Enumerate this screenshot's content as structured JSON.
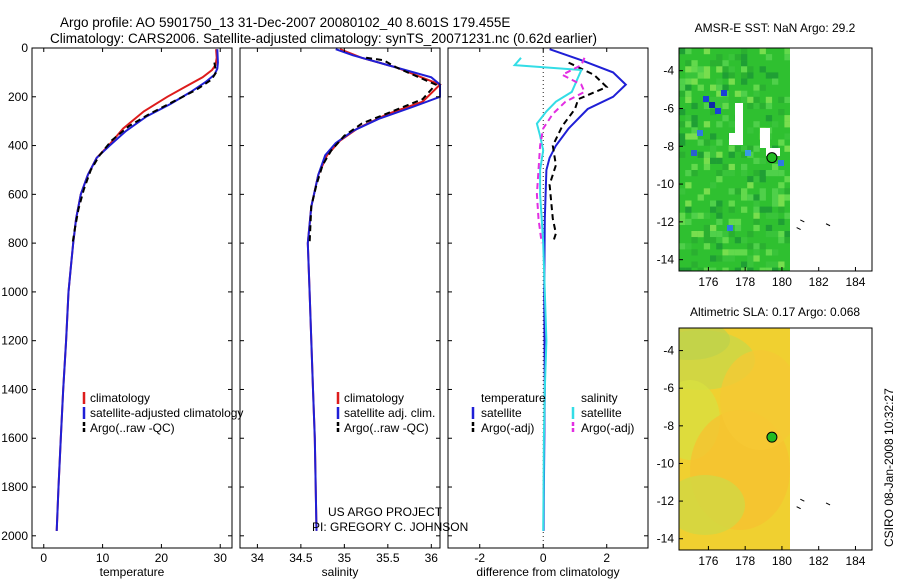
{
  "title_line1": "Argo profile: AO 5901750_13 31-Dec-2007 20080102_40 8.601S 179.455E",
  "title_line2": "Climatology: CARS2006. Satellite-adjusted climatology: synTS_20071231.nc (0.62d earlier)",
  "side_label": "CSIRO 08-Jan-2008 10:32:27",
  "project_text": [
    "US ARGO PROJECT",
    "PI: GREGORY C. JOHNSON"
  ],
  "colors": {
    "red": "#dd1c1c",
    "blue": "#1f1fd6",
    "black": "#000000",
    "cyan": "#33dde6",
    "magenta": "#e22ee2"
  },
  "chart_data": [
    {
      "type": "line",
      "id": "temperature",
      "xlabel": "temperature",
      "ylabel": "",
      "xlim": [
        -2,
        32
      ],
      "ylim": [
        0,
        2050
      ],
      "xticks": [
        0,
        10,
        20,
        30
      ],
      "yticks": [
        0,
        200,
        400,
        600,
        800,
        1000,
        1200,
        1400,
        1600,
        1800,
        2000
      ],
      "legend": [
        "climatology",
        "satellite-adjusted climatology",
        "Argo(..raw -QC)"
      ],
      "series": [
        {
          "name": "climatology",
          "color": "red",
          "dash": "",
          "points": [
            [
              29.3,
              5
            ],
            [
              29.4,
              40
            ],
            [
              29.2,
              70
            ],
            [
              28.6,
              90
            ],
            [
              27,
              120
            ],
            [
              24,
              160
            ],
            [
              21,
              200
            ],
            [
              17,
              260
            ],
            [
              13.5,
              330
            ],
            [
              11,
              400
            ],
            [
              9,
              450
            ],
            [
              7.5,
              520
            ],
            [
              6.3,
              600
            ],
            [
              5.5,
              700
            ],
            [
              5,
              800
            ],
            [
              4.6,
              900
            ],
            [
              4.2,
              1000
            ],
            [
              3.8,
              1200
            ],
            [
              3.3,
              1400
            ],
            [
              2.9,
              1600
            ],
            [
              2.5,
              1800
            ],
            [
              2.2,
              1980
            ]
          ]
        },
        {
          "name": "satellite",
          "color": "blue",
          "dash": "",
          "points": [
            [
              29.5,
              5
            ],
            [
              29.6,
              60
            ],
            [
              29.5,
              85
            ],
            [
              29,
              110
            ],
            [
              27.5,
              140
            ],
            [
              25,
              180
            ],
            [
              21.5,
              230
            ],
            [
              17.5,
              280
            ],
            [
              14,
              340
            ],
            [
              11.2,
              400
            ],
            [
              9,
              450
            ],
            [
              7.5,
              520
            ],
            [
              6.3,
              600
            ],
            [
              5.5,
              700
            ],
            [
              5,
              800
            ],
            [
              4.6,
              900
            ],
            [
              4.2,
              1000
            ],
            [
              3.8,
              1200
            ],
            [
              3.3,
              1400
            ],
            [
              2.9,
              1600
            ],
            [
              2.5,
              1800
            ],
            [
              2.2,
              1980
            ]
          ]
        },
        {
          "name": "argo",
          "color": "black",
          "dash": "6,4",
          "points": [
            [
              29,
              60
            ],
            [
              29.3,
              100
            ],
            [
              28.5,
              130
            ],
            [
              26,
              170
            ],
            [
              22,
              220
            ],
            [
              18,
              270
            ],
            [
              14.5,
              320
            ],
            [
              11.5,
              380
            ],
            [
              9.5,
              440
            ],
            [
              8,
              500
            ],
            [
              6.8,
              580
            ],
            [
              5.9,
              660
            ],
            [
              5.3,
              740
            ],
            [
              4.9,
              800
            ]
          ]
        }
      ]
    },
    {
      "type": "line",
      "id": "salinity",
      "xlabel": "salinity",
      "ylabel": "",
      "xlim": [
        33.8,
        36.1
      ],
      "ylim": [
        0,
        2050
      ],
      "xticks": [
        34,
        34.5,
        35,
        35.5,
        36
      ],
      "legend": [
        "climatology",
        "satellite adj. clim.",
        "Argo(..raw -QC)"
      ],
      "series": [
        {
          "name": "climatology",
          "color": "red",
          "dash": "",
          "points": [
            [
              34.95,
              5
            ],
            [
              35.2,
              40
            ],
            [
              35.6,
              80
            ],
            [
              36.1,
              150
            ],
            [
              35.9,
              220
            ],
            [
              35.5,
              270
            ],
            [
              35.15,
              330
            ],
            [
              34.95,
              380
            ],
            [
              34.8,
              440
            ],
            [
              34.7,
              520
            ],
            [
              34.62,
              650
            ],
            [
              34.58,
              800
            ],
            [
              34.6,
              1000
            ],
            [
              34.62,
              1200
            ],
            [
              34.64,
              1400
            ],
            [
              34.66,
              1600
            ],
            [
              34.67,
              1800
            ],
            [
              34.68,
              1980
            ]
          ]
        },
        {
          "name": "satellite",
          "color": "blue",
          "dash": "",
          "points": [
            [
              34.9,
              5
            ],
            [
              35.1,
              30
            ],
            [
              35.5,
              70
            ],
            [
              36.0,
              120
            ],
            [
              36.1,
              150
            ],
            [
              36.1,
              200
            ],
            [
              35.8,
              240
            ],
            [
              35.4,
              290
            ],
            [
              35.1,
              340
            ],
            [
              34.9,
              390
            ],
            [
              34.78,
              440
            ],
            [
              34.7,
              520
            ],
            [
              34.62,
              650
            ],
            [
              34.58,
              800
            ],
            [
              34.6,
              1000
            ],
            [
              34.62,
              1200
            ],
            [
              34.64,
              1400
            ],
            [
              34.66,
              1600
            ],
            [
              34.67,
              1800
            ],
            [
              34.68,
              1980
            ]
          ]
        },
        {
          "name": "argo",
          "color": "black",
          "dash": "6,4",
          "points": [
            [
              35.25,
              40
            ],
            [
              35.45,
              50
            ],
            [
              35.6,
              80
            ],
            [
              36.05,
              150
            ],
            [
              35.9,
              210
            ],
            [
              35.55,
              260
            ],
            [
              35.2,
              310
            ],
            [
              35.0,
              360
            ],
            [
              34.85,
              420
            ],
            [
              34.75,
              480
            ],
            [
              34.68,
              560
            ],
            [
              34.62,
              650
            ],
            [
              34.6,
              800
            ]
          ]
        }
      ]
    },
    {
      "type": "line",
      "id": "difference",
      "xlabel": "difference from climatology",
      "ylabel": "",
      "xlim": [
        -3,
        3.3
      ],
      "ylim": [
        0,
        2050
      ],
      "xticks": [
        -2,
        0,
        2
      ],
      "legend_groups": [
        {
          "title": "temperature",
          "items": [
            "satellite",
            "Argo(-adj)"
          ]
        },
        {
          "title": "salinity",
          "items": [
            "satellite",
            "Argo(-adj)"
          ]
        }
      ],
      "series": [
        {
          "name": "temperature satellite",
          "color": "blue",
          "dash": "",
          "points": [
            [
              0.2,
              5
            ],
            [
              1.2,
              50
            ],
            [
              2.2,
              100
            ],
            [
              2.6,
              150
            ],
            [
              2.2,
              200
            ],
            [
              1.4,
              250
            ],
            [
              0.8,
              330
            ],
            [
              0.4,
              400
            ],
            [
              0.2,
              450
            ],
            [
              0.1,
              500
            ],
            [
              0.05,
              700
            ],
            [
              0.03,
              1000
            ],
            [
              0.05,
              1400
            ],
            [
              0.02,
              1800
            ],
            [
              0.01,
              1980
            ]
          ]
        },
        {
          "name": "temperature argo",
          "color": "black",
          "dash": "6,4",
          "points": [
            [
              0.8,
              60
            ],
            [
              1.6,
              110
            ],
            [
              2.0,
              160
            ],
            [
              1.1,
              210
            ],
            [
              1.0,
              250
            ],
            [
              0.6,
              320
            ],
            [
              0.3,
              400
            ],
            [
              0.4,
              480
            ],
            [
              0.2,
              560
            ],
            [
              0.3,
              700
            ],
            [
              0.4,
              760
            ],
            [
              0.3,
              800
            ]
          ]
        },
        {
          "name": "salinity satellite",
          "color": "cyan",
          "dash": "",
          "points": [
            [
              -0.7,
              40
            ],
            [
              -0.9,
              70
            ],
            [
              1.2,
              90
            ],
            [
              0.9,
              180
            ],
            [
              0.4,
              220
            ],
            [
              0.1,
              260
            ],
            [
              -0.2,
              310
            ],
            [
              -0.1,
              360
            ],
            [
              0.0,
              420
            ],
            [
              -0.1,
              500
            ],
            [
              -0.1,
              600
            ],
            [
              -0.05,
              700
            ],
            [
              0.0,
              800
            ],
            [
              0.05,
              1000
            ],
            [
              0.1,
              1200
            ],
            [
              0.05,
              1400
            ],
            [
              0.02,
              1600
            ],
            [
              0.01,
              1800
            ],
            [
              0.0,
              1980
            ]
          ]
        },
        {
          "name": "salinity argo",
          "color": "magenta",
          "dash": "6,4",
          "points": [
            [
              1.3,
              40
            ],
            [
              1.2,
              70
            ],
            [
              0.6,
              110
            ],
            [
              1.2,
              150
            ],
            [
              1.3,
              180
            ],
            [
              0.7,
              220
            ],
            [
              0.3,
              270
            ],
            [
              0.0,
              330
            ],
            [
              -0.1,
              400
            ],
            [
              -0.15,
              500
            ],
            [
              -0.2,
              600
            ],
            [
              -0.15,
              700
            ],
            [
              -0.05,
              800
            ]
          ]
        }
      ]
    },
    {
      "type": "heatmap",
      "id": "sst-map",
      "title": "AMSR-E SST: NaN Argo: 29.2",
      "xlim": [
        174.4,
        184.9
      ],
      "ylim": [
        -14.6,
        -2.8
      ],
      "xticks": [
        176,
        178,
        180,
        182,
        184
      ],
      "yticks": [
        -4,
        -6,
        -8,
        -10,
        -12,
        -14
      ],
      "argo_position": [
        179.455,
        -8.601
      ]
    },
    {
      "type": "heatmap",
      "id": "sla-map",
      "title": "Altimetric SLA: 0.17 Argo: 0.068",
      "xlim": [
        174.4,
        184.9
      ],
      "ylim": [
        -14.6,
        -2.8
      ],
      "xticks": [
        176,
        178,
        180,
        182,
        184
      ],
      "yticks": [
        -4,
        -6,
        -8,
        -10,
        -12,
        -14
      ],
      "argo_position": [
        179.455,
        -8.601
      ]
    }
  ]
}
